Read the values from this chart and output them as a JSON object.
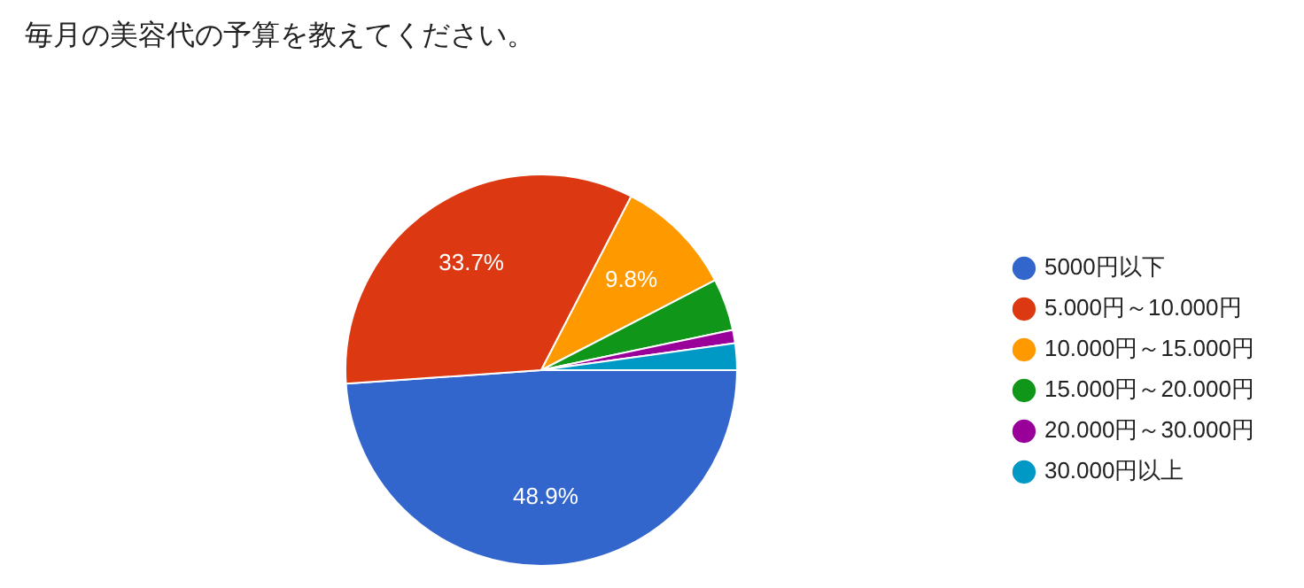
{
  "chart_data": {
    "type": "pie",
    "title": "毎月の美容代の予算を教えてください。",
    "categories": [
      "5000円以下",
      "5.000円～10.000円",
      "10.000円～15.000円",
      "15.000円～20.000円",
      "20.000円～30.000円",
      "30.000円以上"
    ],
    "values": [
      48.9,
      33.7,
      9.8,
      4.3,
      1.1,
      2.2
    ],
    "colors": [
      "#3366cc",
      "#dc3912",
      "#ff9900",
      "#109618",
      "#990099",
      "#0099c6"
    ],
    "value_labels": [
      "48.9%",
      "33.7%",
      "9.8%",
      null,
      null,
      null
    ],
    "legend": "right"
  }
}
